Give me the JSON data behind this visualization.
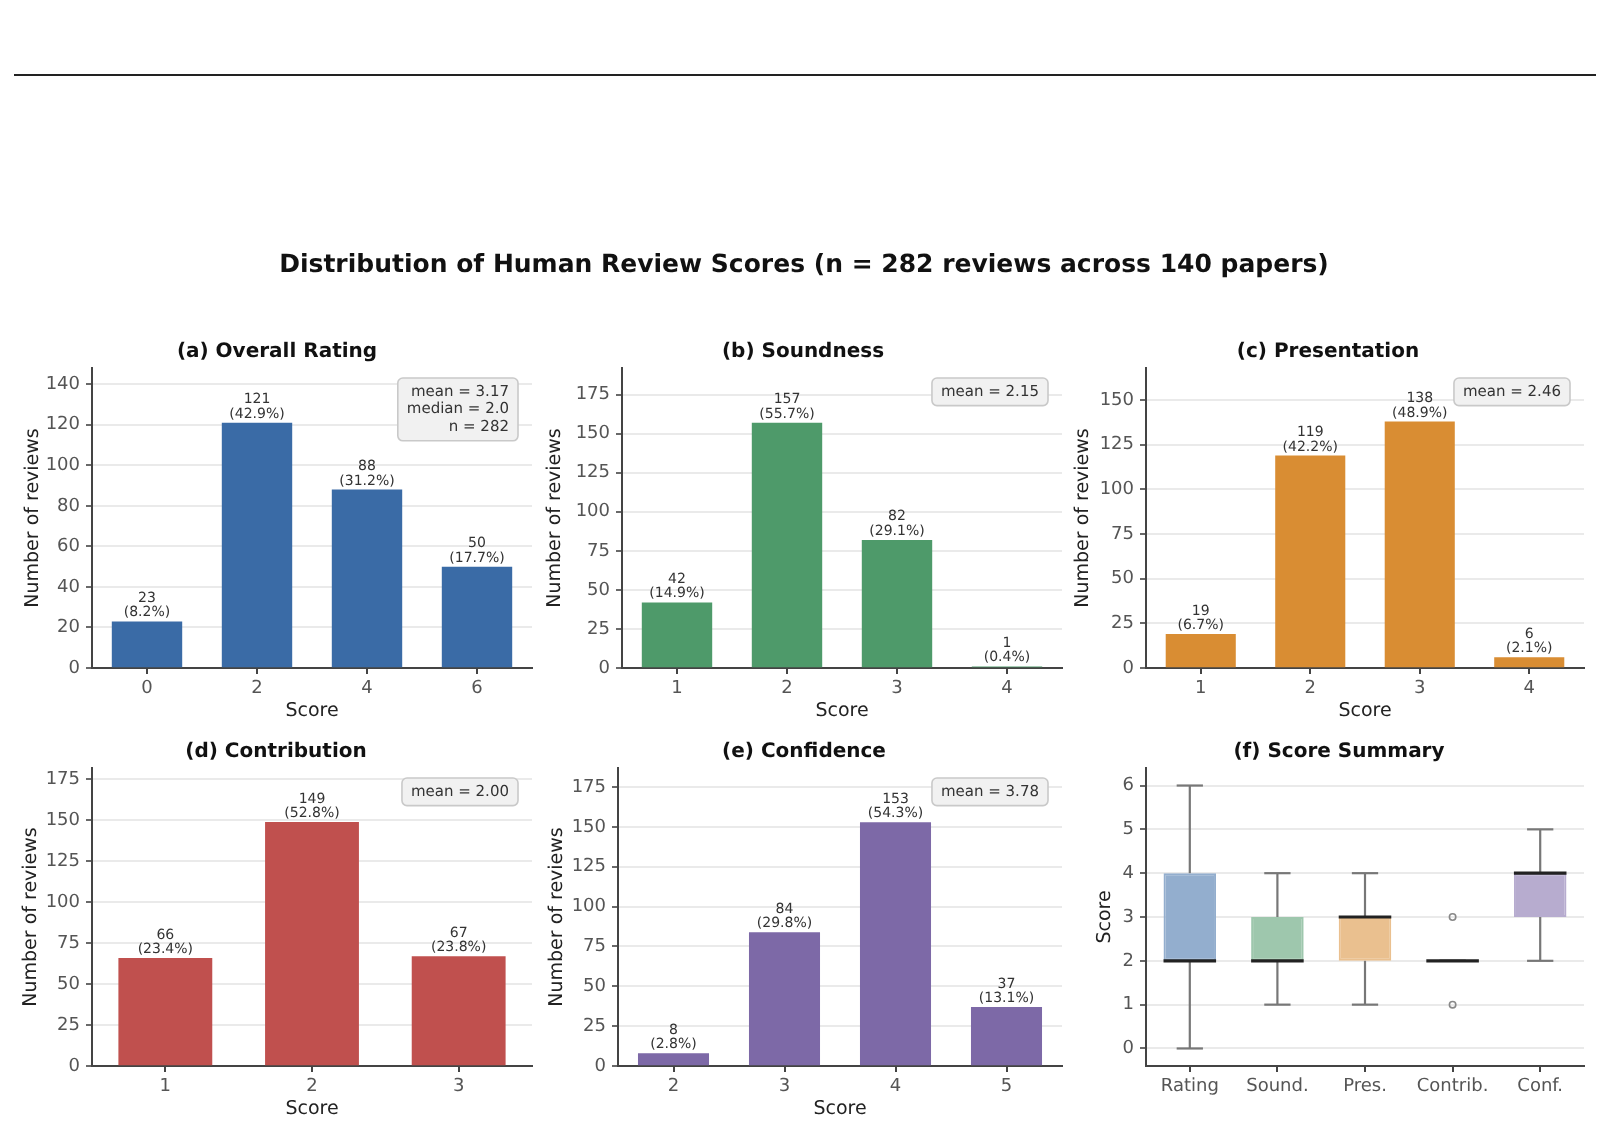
{
  "chart_data": [
    {
      "type": "other",
      "title": "Distribution of Human Review Scores (n = 282 reviews across 140 papers)"
    },
    {
      "type": "bar",
      "title": "(a) Overall Rating",
      "xlabel": "Score",
      "ylabel": "Number of reviews",
      "categories": [
        "0",
        "2",
        "4",
        "6"
      ],
      "values": [
        23,
        121,
        88,
        50
      ],
      "color": "#3a6ba6",
      "value_labels": [
        "23\n(8.2%)",
        "121\n(42.9%)",
        "88\n(31.2%)",
        "50\n(17.7%)"
      ],
      "ylim": [
        0,
        148
      ],
      "yticks": [
        0,
        20,
        40,
        60,
        80,
        100,
        120,
        140
      ],
      "grid": "y",
      "annotations": [
        "mean = 3.17\nmedian = 2.0\nn = 282"
      ]
    },
    {
      "type": "bar",
      "title": "(b) Soundness",
      "xlabel": "Score",
      "ylabel": "Number of reviews",
      "categories": [
        "1",
        "2",
        "3",
        "4"
      ],
      "values": [
        42,
        157,
        82,
        1
      ],
      "color": "#4e9a6a",
      "value_labels": [
        "42\n(14.9%)",
        "157\n(55.7%)",
        "82\n(29.1%)",
        "1\n(0.4%)"
      ],
      "ylim": [
        0,
        192
      ],
      "yticks": [
        0,
        25,
        50,
        75,
        100,
        125,
        150,
        175
      ],
      "grid": "y",
      "annotations": [
        "mean = 2.15"
      ]
    },
    {
      "type": "bar",
      "title": "(c) Presentation",
      "xlabel": "Score",
      "ylabel": "Number of reviews",
      "categories": [
        "1",
        "2",
        "3",
        "4"
      ],
      "values": [
        19,
        119,
        138,
        6
      ],
      "color": "#d98d33",
      "value_labels": [
        "19\n(6.7%)",
        "119\n(42.2%)",
        "138\n(48.9%)",
        "6\n(2.1%)"
      ],
      "ylim": [
        0,
        168
      ],
      "yticks": [
        0,
        25,
        50,
        75,
        100,
        125,
        150
      ],
      "grid": "y",
      "annotations": [
        "mean = 2.46"
      ]
    },
    {
      "type": "bar",
      "title": "(d) Contribution",
      "xlabel": "Score",
      "ylabel": "Number of reviews",
      "categories": [
        "1",
        "2",
        "3"
      ],
      "values": [
        66,
        149,
        67
      ],
      "color": "#c0504e",
      "value_labels": [
        "66\n(23.4%)",
        "149\n(52.8%)",
        "67\n(23.8%)"
      ],
      "ylim": [
        0,
        182
      ],
      "yticks": [
        0,
        25,
        50,
        75,
        100,
        125,
        150,
        175
      ],
      "grid": "y",
      "annotations": [
        "mean = 2.00"
      ]
    },
    {
      "type": "bar",
      "title": "(e) Confidence",
      "xlabel": "Score",
      "ylabel": "Number of reviews",
      "categories": [
        "2",
        "3",
        "4",
        "5"
      ],
      "values": [
        8,
        84,
        153,
        37
      ],
      "color": "#7d69a7",
      "value_labels": [
        "8\n(2.8%)",
        "84\n(29.8%)",
        "153\n(54.3%)",
        "37\n(13.1%)"
      ],
      "ylim": [
        0,
        187
      ],
      "yticks": [
        0,
        25,
        50,
        75,
        100,
        125,
        150,
        175
      ],
      "grid": "y",
      "annotations": [
        "mean = 3.78"
      ]
    },
    {
      "type": "box",
      "title": "(f) Score Summary",
      "ylabel": "Score",
      "categories": [
        "Rating",
        "Sound.",
        "Pres.",
        "Contrib.",
        "Conf."
      ],
      "boxes": [
        {
          "low": 0,
          "q1": 2,
          "median": 2,
          "q3": 4,
          "high": 6
        },
        {
          "low": 1,
          "q1": 2,
          "median": 2,
          "q3": 3,
          "high": 4
        },
        {
          "low": 1,
          "q1": 2,
          "median": 3,
          "q3": 3,
          "high": 4
        },
        {
          "low": 2,
          "q1": 2,
          "median": 2,
          "q3": 2,
          "high": 2,
          "outliers": [
            1,
            3
          ]
        },
        {
          "low": 2,
          "q1": 3,
          "median": 4,
          "q3": 4,
          "high": 5
        }
      ],
      "colors": [
        "#93aece",
        "#9ec7ad",
        "#eac08f",
        null,
        "#b7accf"
      ],
      "ylim": [
        -0.4,
        6.4
      ],
      "yticks": [
        0,
        1,
        2,
        3,
        4,
        5,
        6
      ],
      "grid": "y"
    }
  ]
}
